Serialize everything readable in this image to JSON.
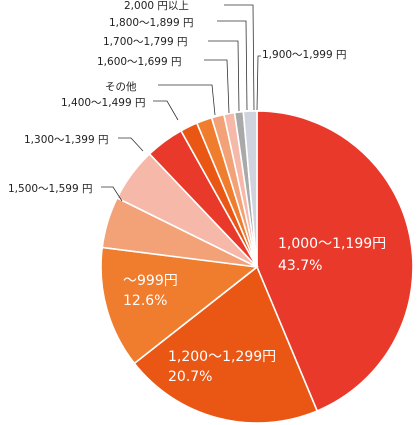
{
  "chart_data": {
    "type": "pie",
    "title": "",
    "start_angle_deg": 0,
    "direction": "clockwise",
    "slices": [
      {
        "label": "1,000〜1,199円",
        "value": 43.7,
        "value_label": "43.7%",
        "color": "#e8392b",
        "label_inside": true
      },
      {
        "label": "1,200〜1,299円",
        "value": 20.7,
        "value_label": "20.7%",
        "color": "#ea5614",
        "label_inside": true
      },
      {
        "label": "〜999円",
        "value": 12.6,
        "value_label": "12.6%",
        "color": "#f07c2e",
        "label_inside": true
      },
      {
        "label": "1,500〜1,599 円",
        "value": 5.3,
        "color": "#f3a176",
        "label_inside": false
      },
      {
        "label": "1,300〜1,399 円",
        "value": 5.6,
        "color": "#f6b8a8",
        "label_inside": false
      },
      {
        "label": "1,400〜1,499 円",
        "value": 4.0,
        "color": "#e8392b",
        "label_inside": false
      },
      {
        "label": "その他",
        "value": 1.8,
        "color": "#ea5614",
        "label_inside": false
      },
      {
        "label": "1,600〜1,699 円",
        "value": 1.6,
        "color": "#f07c2e",
        "label_inside": false
      },
      {
        "label": "1,700〜1,799 円",
        "value": 1.3,
        "color": "#f3a176",
        "label_inside": false
      },
      {
        "label": "1,800〜1,899 円",
        "value": 1.1,
        "color": "#f6b8a8",
        "label_inside": false
      },
      {
        "label": "2,000 円以上",
        "value": 0.9,
        "color": "#a9a9a9",
        "label_inside": false
      },
      {
        "label": "1,900〜1,999 円",
        "value": 1.4,
        "color": "#cfd3de",
        "label_inside": false
      }
    ]
  }
}
